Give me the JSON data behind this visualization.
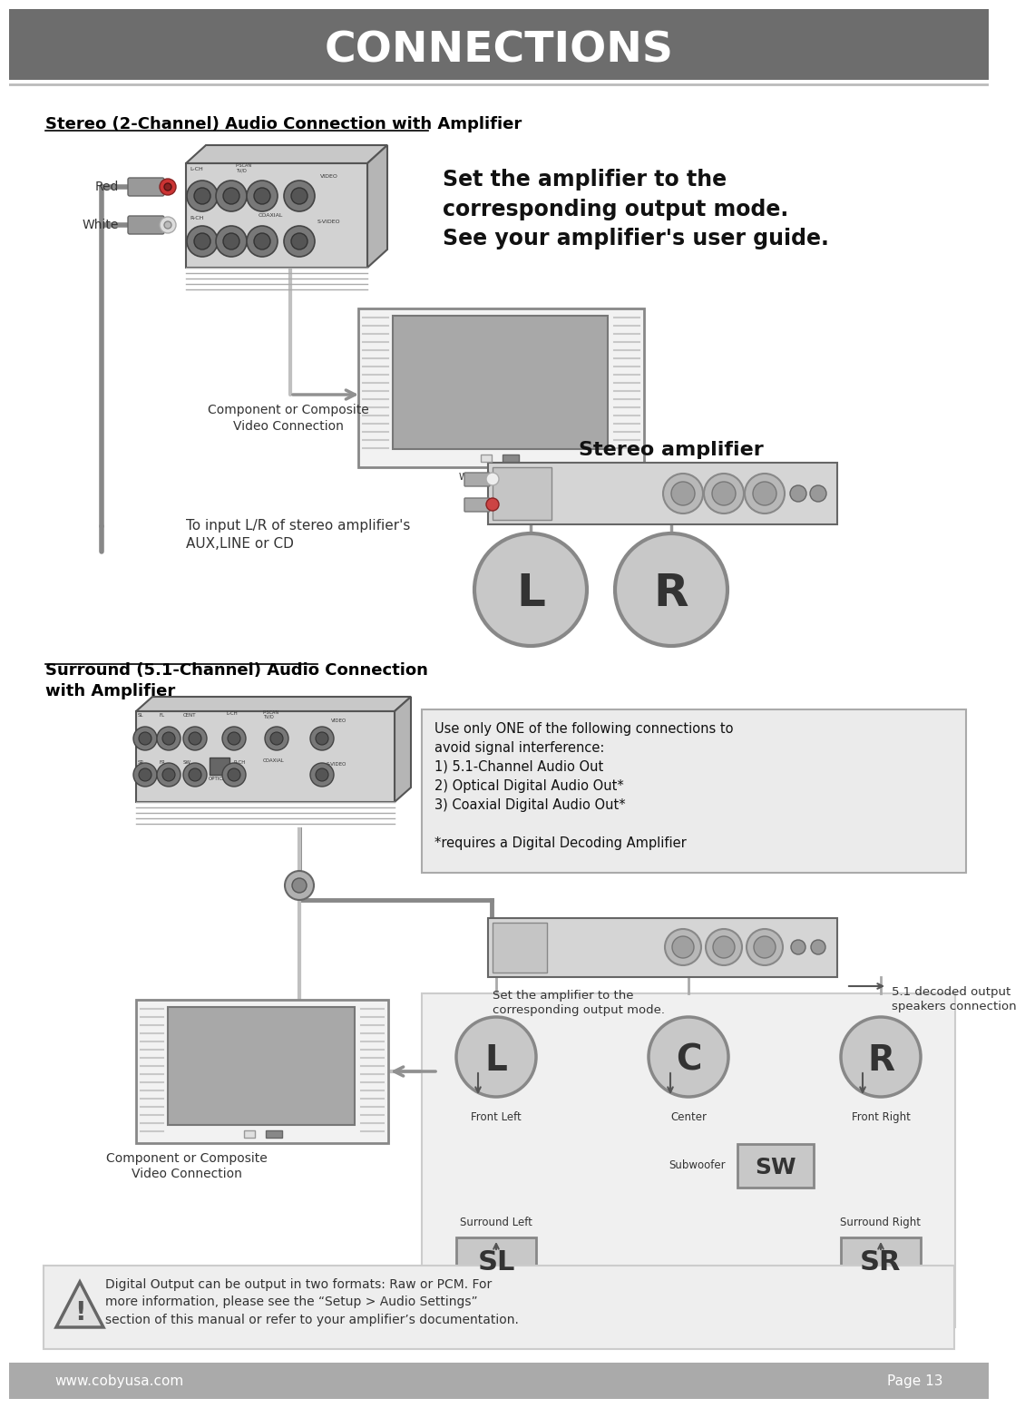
{
  "title": "CONNECTIONS",
  "title_bg": "#6d6d6d",
  "title_color": "#ffffff",
  "page_bg": "#ffffff",
  "footer_bg": "#aaaaaa",
  "footer_text_left": "www.cobyusa.com",
  "footer_text_right": "Page 13",
  "section1_title": "Stereo (2-Channel) Audio Connection with Amplifier",
  "section2_title": "Surround (5.1-Channel) Audio Connection \nwith Amplifier",
  "set_amplifier_text": "Set the amplifier to the\ncorresponding output mode.\nSee your amplifier's user guide.",
  "stereo_amplifier_label": "Stereo amplifier",
  "input_label": "To input L/R of stereo amplifier's\nAUX,LINE or CD",
  "comp_video_label1": "Component or Composite\nVideo Connection",
  "comp_video_label2": "Component or Composite\nVideo Connection",
  "note_box_text": "Use only ONE of the following connections to\navoid signal interference:\n1) 5.1-Channel Audio Out\n2) Optical Digital Audio Out*\n3) Coaxial Digital Audio Out*\n\n*requires a Digital Decoding Amplifier",
  "warning_text": "Digital Output can be output in two formats: Raw or PCM. For\nmore information, please see the “Setup > Audio Settings”\nsection of this manual or refer to your amplifier’s documentation.",
  "set_amp_label": "Set the amplifier to the\ncorresponding output mode.",
  "decoded_label": "5.1 decoded output\nspeakers connection",
  "speaker_L": "L",
  "speaker_C": "C",
  "speaker_R": "R",
  "speaker_SW": "SW",
  "speaker_SL": "SL",
  "speaker_SR": "SR",
  "label_Center": "Center",
  "label_FrontLeft": "Front Left",
  "label_FrontRight": "Front Right",
  "label_Subwoofer": "Subwoofer",
  "label_SurroundLeft": "Surround Left",
  "label_SurroundRight": "Surround Right",
  "gray_dark": "#555555",
  "gray_mid": "#888888",
  "gray_light": "#cccccc",
  "gray_lighter": "#eeeeee",
  "red_color": "#cc0000",
  "line_gray": "#999999"
}
